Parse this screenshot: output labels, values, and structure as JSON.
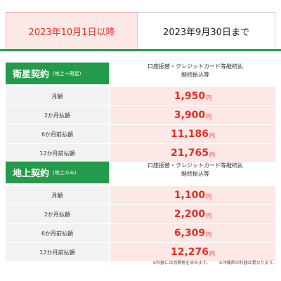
{
  "tabs": {
    "active_label": "2023年10月1日以降",
    "inactive_label": "2023年9月30日まで"
  },
  "colors": {
    "accent_green": "#239b4a",
    "price_red": "#e03025",
    "price_bg": "#fce8e6"
  },
  "sections": [
    {
      "title": "衛星契約",
      "subtitle": "(地上＋衛星)",
      "note_line1": "口座振替・クレジットカード等継続払",
      "note_line2": "継続振込等",
      "rows": [
        {
          "label": "月額",
          "value": "1,950",
          "unit": "円"
        },
        {
          "label": "2か月払額",
          "value": "3,900",
          "unit": "円"
        },
        {
          "label": "6か月前払額",
          "value": "11,186",
          "unit": "円"
        },
        {
          "label": "12か月前払額",
          "value": "21,765",
          "unit": "円"
        }
      ]
    },
    {
      "title": "地上契約",
      "subtitle": "(地上のみ)",
      "note_line1": "口座振替・クレジットカード等継続払",
      "note_line2": "継続振込等",
      "rows": [
        {
          "label": "月額",
          "value": "1,100",
          "unit": "円"
        },
        {
          "label": "2か月払額",
          "value": "2,200",
          "unit": "円"
        },
        {
          "label": "6か月前払額",
          "value": "6,309",
          "unit": "円"
        },
        {
          "label": "12か月前払額",
          "value": "12,276",
          "unit": "円"
        }
      ]
    }
  ],
  "footnotes": {
    "tax": "※料額には消費税を含みます。",
    "okinawa": "※沖縄県の料額は異なります。"
  }
}
